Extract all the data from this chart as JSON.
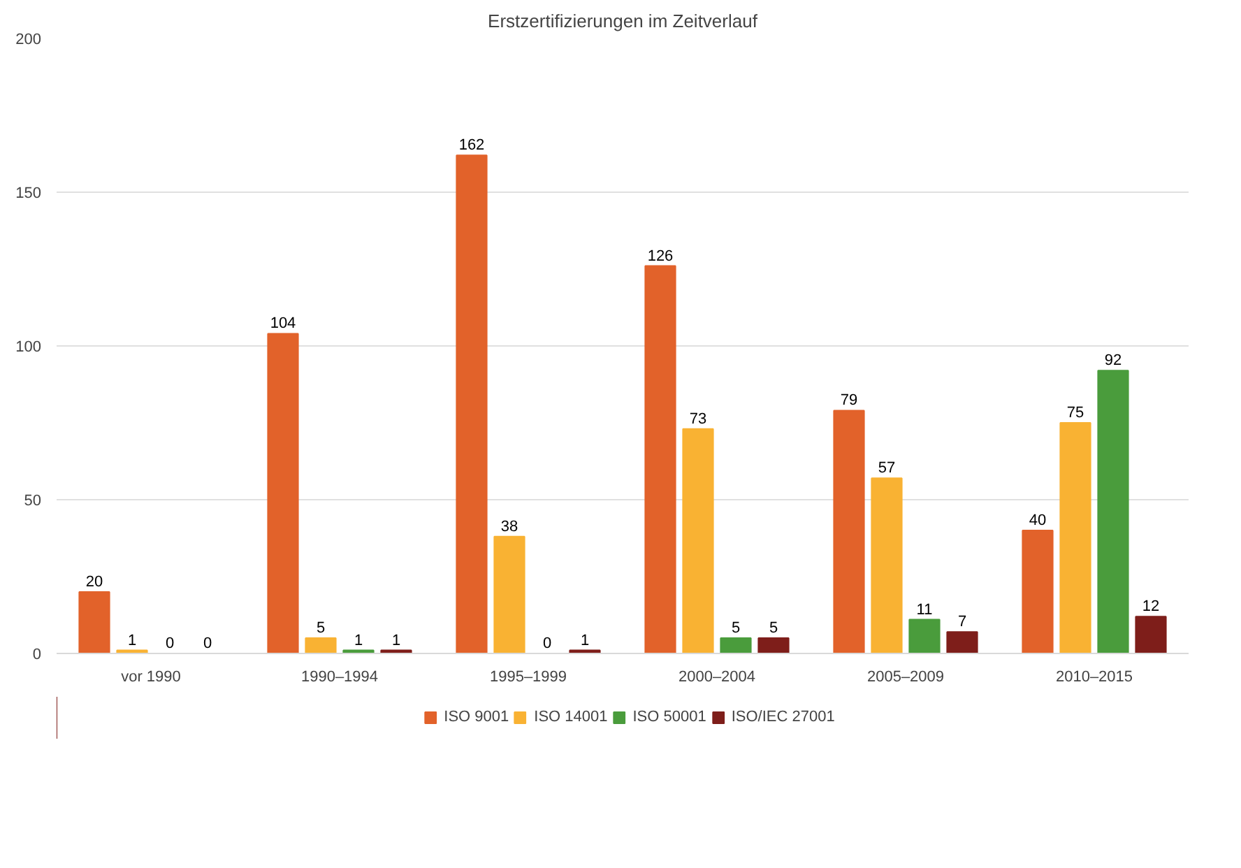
{
  "chart_data": {
    "type": "bar",
    "title": "Erstzertifizierungen im Zeitverlauf",
    "categories": [
      "vor 1990",
      "1990–1994",
      "1995–1999",
      "2000–2004",
      "2005–2009",
      "2010–2015"
    ],
    "series": [
      {
        "name": "ISO 9001",
        "color": "#e2622a",
        "values": [
          20,
          104,
          162,
          126,
          79,
          40
        ]
      },
      {
        "name": "ISO 14001",
        "color": "#f9b233",
        "values": [
          1,
          5,
          38,
          73,
          57,
          75
        ]
      },
      {
        "name": "ISO 50001",
        "color": "#4a9c3c",
        "values": [
          0,
          1,
          0,
          5,
          11,
          92
        ]
      },
      {
        "name": "ISO/IEC 27001",
        "color": "#7e1e1a",
        "values": [
          0,
          1,
          1,
          5,
          7,
          12
        ]
      }
    ],
    "ylim": [
      0,
      200
    ],
    "yticks": [
      0,
      50,
      100,
      150,
      200
    ],
    "grid": "y",
    "legend": "bottom",
    "data_labels": true
  }
}
